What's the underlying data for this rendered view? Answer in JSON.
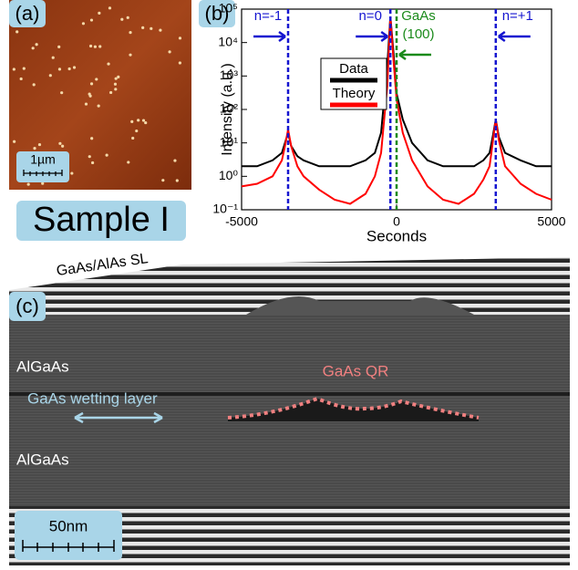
{
  "panel_a": {
    "label": "(a)",
    "scale_bar": "1µm",
    "sample": "Sample I"
  },
  "panel_b": {
    "label": "(b)"
  },
  "chart_data": {
    "type": "line",
    "xlabel": "Seconds",
    "ylabel": "Intensity (a.u.)",
    "xlim": [
      -5000,
      5000
    ],
    "xticks": [
      -5000,
      0,
      5000
    ],
    "ylim": [
      0.1,
      100000
    ],
    "log_y": true,
    "yticks": [
      {
        "value": 0.1,
        "label": "10⁻¹"
      },
      {
        "value": 1,
        "label": "10⁰"
      },
      {
        "value": 10,
        "label": "10¹"
      },
      {
        "value": 100,
        "label": "10²"
      },
      {
        "value": 1000,
        "label": "10³"
      },
      {
        "value": 10000,
        "label": "10⁴"
      },
      {
        "value": 100000,
        "label": "10⁵"
      }
    ],
    "x": [
      -5000,
      -4500,
      -4000,
      -3700,
      -3600,
      -3500,
      -3400,
      -3200,
      -3000,
      -2500,
      -2000,
      -1500,
      -1000,
      -700,
      -500,
      -300,
      -200,
      -100,
      0,
      200,
      500,
      1000,
      1500,
      2000,
      2500,
      2800,
      3000,
      3100,
      3200,
      3300,
      3500,
      4000,
      4500,
      5000
    ],
    "series": [
      {
        "name": "Data",
        "color": "#000000",
        "values": [
          2,
          2,
          3,
          5,
          10,
          20,
          8,
          4,
          3,
          2,
          2,
          2,
          3,
          5,
          20,
          2000,
          60000,
          5000,
          300,
          50,
          10,
          3,
          2,
          2,
          2,
          3,
          5,
          15,
          50,
          15,
          5,
          3,
          2,
          2
        ]
      },
      {
        "name": "Theory",
        "color": "#ff0000",
        "values": [
          0.5,
          0.6,
          1,
          3,
          8,
          25,
          8,
          2,
          1,
          0.4,
          0.2,
          0.15,
          0.3,
          1,
          5,
          500,
          60000,
          3000,
          200,
          20,
          3,
          0.5,
          0.2,
          0.15,
          0.3,
          0.8,
          2,
          10,
          50,
          12,
          2,
          0.6,
          0.3,
          0.2
        ]
      }
    ],
    "markers": [
      {
        "x": -3500,
        "color": "#1515d0",
        "label": [
          "n=-1"
        ]
      },
      {
        "x": -200,
        "color": "#1515d0",
        "label": [
          "n=0"
        ]
      },
      {
        "x": 0,
        "color": "#1a8a1a",
        "label": [
          "GaAs",
          "(100)"
        ]
      },
      {
        "x": 3200,
        "color": "#1515d0",
        "label": [
          "n=+1"
        ]
      }
    ]
  },
  "panel_c": {
    "label": "(c)",
    "superlattice": "GaAs/AlAs SL",
    "barrier_top": "AlGaAs",
    "wetting_layer": "GaAs wetting layer",
    "ring": "GaAs QR",
    "barrier_bottom": "AlGaAs",
    "scale_bar": "50nm"
  }
}
